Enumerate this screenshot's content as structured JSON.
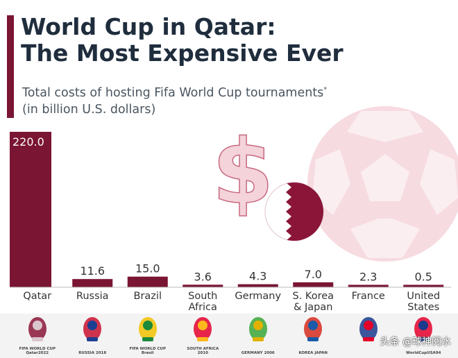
{
  "title_line1": "World Cup in Qatar:",
  "title_line2": "The Most Expensive Ever",
  "subtitle_line1": "Total costs of hosting Fifa World Cup tournaments",
  "subtitle_mark": "*",
  "subtitle_line2": "(in billion U.S. dollars)",
  "colors": {
    "bar": "#7a1533",
    "title": "#1f2d3d",
    "decor": "#f3d2da"
  },
  "chart_data": {
    "type": "bar",
    "categories": [
      "Qatar",
      "Russia",
      "Brazil",
      "South Africa",
      "Germany",
      "S. Korea & Japan",
      "France",
      "United States"
    ],
    "category_lines": [
      [
        "Qatar"
      ],
      [
        "Russia"
      ],
      [
        "Brazil"
      ],
      [
        "South",
        "Africa"
      ],
      [
        "Germany"
      ],
      [
        "S. Korea",
        "& Japan"
      ],
      [
        "France"
      ],
      [
        "United",
        "States"
      ]
    ],
    "values": [
      220.0,
      11.6,
      15.0,
      3.6,
      4.3,
      7.0,
      2.3,
      0.5
    ],
    "value_labels": [
      "220.0",
      "11.6",
      "15.0",
      "3.6",
      "4.3",
      "7.0",
      "2.3",
      "0.5"
    ],
    "ylim": [
      0,
      220
    ],
    "grid": false,
    "legend": "none"
  },
  "logos": [
    {
      "icon": "qatar-2022-logo",
      "text": "FIFA WORLD CUP Qatar2022"
    },
    {
      "icon": "russia-2018-logo",
      "text": "RUSSIA 2018"
    },
    {
      "icon": "brazil-2014-logo",
      "text": "FIFA WORLD CUP Brasil"
    },
    {
      "icon": "south-africa-2010-logo",
      "text": "SOUTH AFRICA 2010"
    },
    {
      "icon": "germany-2006-logo",
      "text": "GERMANY 2006"
    },
    {
      "icon": "korea-japan-2002-logo",
      "text": "KOREA JAPAN"
    },
    {
      "icon": "france-1998-logo",
      "text": ""
    },
    {
      "icon": "usa-1994-logo",
      "text": "WorldCupUSA94"
    }
  ],
  "watermark": "头条 @球神阅水"
}
